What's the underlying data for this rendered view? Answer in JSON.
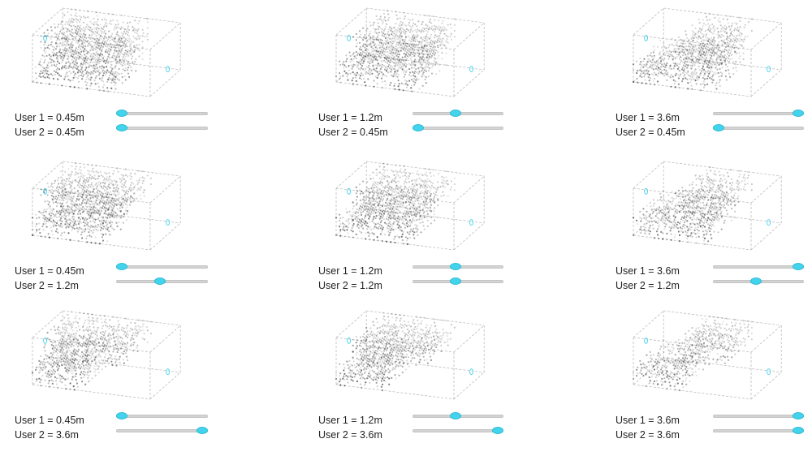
{
  "slider_range": [
    0.45,
    3.6
  ],
  "accent_color": "#41d4ec",
  "panels": [
    {
      "u1_text": "User 1 = 0.45m",
      "u2_text": "User 2 = 0.45m",
      "u1": 0.45,
      "u2": 0.45
    },
    {
      "u1_text": "User 1 = 1.2m",
      "u2_text": "User 2 = 0.45m",
      "u1": 1.2,
      "u2": 0.45
    },
    {
      "u1_text": "User 1 = 3.6m",
      "u2_text": "User 2 = 0.45m",
      "u1": 3.6,
      "u2": 0.45
    },
    {
      "u1_text": "User 1 = 0.45m",
      "u2_text": "User 2 = 1.2m",
      "u1": 0.45,
      "u2": 1.2
    },
    {
      "u1_text": "User 1 = 1.2m",
      "u2_text": "User 2 = 1.2m",
      "u1": 1.2,
      "u2": 1.2
    },
    {
      "u1_text": "User 1 = 3.6m",
      "u2_text": "User 2 = 1.2m",
      "u1": 3.6,
      "u2": 1.2
    },
    {
      "u1_text": "User 1 = 0.45m",
      "u2_text": "User 2 = 3.6m",
      "u1": 0.45,
      "u2": 3.6
    },
    {
      "u1_text": "User 1 = 1.2m",
      "u2_text": "User 2 = 3.6m",
      "u1": 1.2,
      "u2": 3.6
    },
    {
      "u1_text": "User 1 = 3.6m",
      "u2_text": "User 2 = 3.6m",
      "u1": 3.6,
      "u2": 3.6
    }
  ]
}
